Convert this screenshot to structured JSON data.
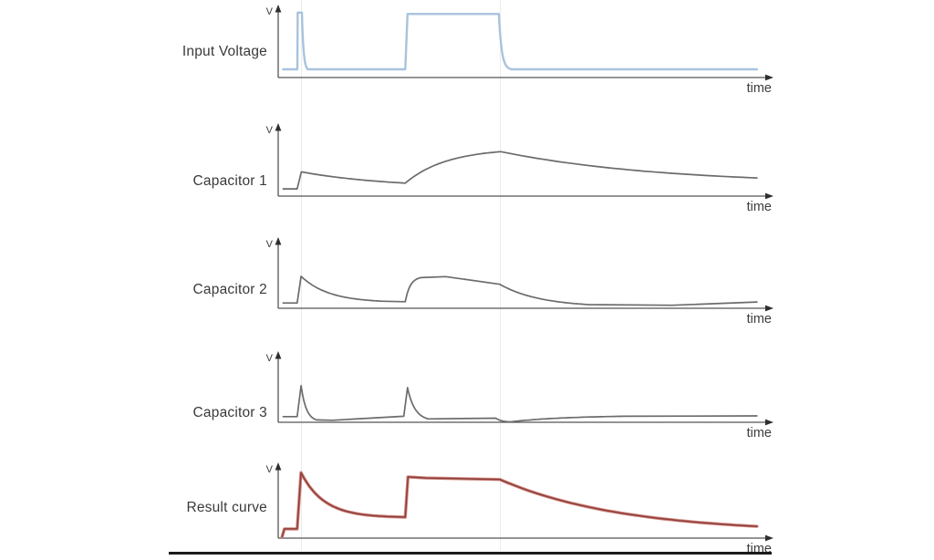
{
  "figure": {
    "kind": "stacked-time-response-plots",
    "colors": {
      "input_curve": "#a8c3dd",
      "capacitor_curve": "#6b6b6b",
      "result_outer": "#cf837c",
      "result_core": "#8e3f3a",
      "axis": "#545454",
      "guide": "#ebebeb"
    }
  },
  "chart_data": {
    "type": "line",
    "x_axis": "time",
    "y_axis": "V",
    "axes_numeric": false,
    "grid": false,
    "event_marker_times_x": [
      0.0463,
      0.451
    ],
    "note": "x,y normalized: x 0..1 along time axis, y 0=time-axis 1=top of V axis. segments: [x0,y0,x1,y1,type,(k)]",
    "charts": [
      {
        "label": "Input Voltage",
        "y_axis_label": "V",
        "x_axis_label": "time",
        "color": "#a8c3dd",
        "core_color": null,
        "segments": [
          [
            0.01,
            0.12,
            0.0389,
            0.12,
            "line"
          ],
          [
            0.0389,
            0.12,
            0.0396,
            0.95,
            "line"
          ],
          [
            0.0396,
            0.95,
            0.0481,
            0.95,
            "line"
          ],
          [
            0.0481,
            0.95,
            0.06,
            0.12,
            "exp",
            3.5
          ],
          [
            0.06,
            0.12,
            0.258,
            0.12,
            "line"
          ],
          [
            0.258,
            0.12,
            0.2625,
            0.93,
            "line"
          ],
          [
            0.2625,
            0.93,
            0.448,
            0.93,
            "line"
          ],
          [
            0.448,
            0.93,
            0.474,
            0.12,
            "exp",
            4.5
          ],
          [
            0.474,
            0.12,
            0.972,
            0.12,
            "line"
          ]
        ]
      },
      {
        "label": "Capacitor 1",
        "y_axis_label": "V",
        "x_axis_label": "time",
        "color": "#6b6b6b",
        "core_color": null,
        "segments": [
          [
            0.01,
            0.105,
            0.0385,
            0.105,
            "line"
          ],
          [
            0.0385,
            0.105,
            0.047,
            0.355,
            "line"
          ],
          [
            0.047,
            0.355,
            0.258,
            0.19,
            "exp",
            1.2
          ],
          [
            0.258,
            0.19,
            0.452,
            0.65,
            "exp",
            2.3
          ],
          [
            0.452,
            0.65,
            0.972,
            0.265,
            "exp",
            1.6
          ]
        ]
      },
      {
        "label": "Capacitor 2",
        "y_axis_label": "V",
        "x_axis_label": "time",
        "color": "#6b6b6b",
        "core_color": null,
        "segments": [
          [
            0.01,
            0.08,
            0.0385,
            0.08,
            "line"
          ],
          [
            0.0385,
            0.08,
            0.0465,
            0.48,
            "line"
          ],
          [
            0.0465,
            0.48,
            0.215,
            0.105,
            "exp",
            3.0
          ],
          [
            0.215,
            0.105,
            0.258,
            0.098,
            "line"
          ],
          [
            0.258,
            0.098,
            0.29,
            0.46,
            "exp",
            3.2
          ],
          [
            0.29,
            0.46,
            0.34,
            0.475,
            "line"
          ],
          [
            0.34,
            0.475,
            0.45,
            0.36,
            "line"
          ],
          [
            0.45,
            0.36,
            0.63,
            0.055,
            "exp",
            2.2
          ],
          [
            0.63,
            0.055,
            0.8,
            0.045,
            "line"
          ],
          [
            0.8,
            0.045,
            0.972,
            0.095,
            "line"
          ]
        ]
      },
      {
        "label": "Capacitor 3",
        "y_axis_label": "V",
        "x_axis_label": "time",
        "color": "#6b6b6b",
        "core_color": null,
        "segments": [
          [
            0.01,
            0.085,
            0.0385,
            0.085,
            "line"
          ],
          [
            0.0385,
            0.085,
            0.0465,
            0.55,
            "line"
          ],
          [
            0.0465,
            0.55,
            0.078,
            0.035,
            "exp",
            3.0
          ],
          [
            0.078,
            0.035,
            0.11,
            0.03,
            "line"
          ],
          [
            0.11,
            0.03,
            0.255,
            0.09,
            "line"
          ],
          [
            0.255,
            0.09,
            0.2625,
            0.52,
            "line"
          ],
          [
            0.2625,
            0.52,
            0.305,
            0.05,
            "exp",
            2.8
          ],
          [
            0.305,
            0.05,
            0.442,
            0.062,
            "line"
          ],
          [
            0.442,
            0.062,
            0.47,
            0.006,
            "exp",
            2.5
          ],
          [
            0.47,
            0.006,
            0.7,
            0.09,
            "exp",
            2.0
          ],
          [
            0.7,
            0.09,
            0.972,
            0.096,
            "line"
          ]
        ]
      },
      {
        "label": "Result curve",
        "y_axis_label": "V",
        "x_axis_label": "time",
        "color": "#cf837c",
        "core_color": "#8e3f3a",
        "segments": [
          [
            0.008,
            0.02,
            0.0125,
            0.13,
            "line"
          ],
          [
            0.0125,
            0.13,
            0.0385,
            0.13,
            "line"
          ],
          [
            0.0385,
            0.13,
            0.0463,
            0.92,
            "line"
          ],
          [
            0.0463,
            0.92,
            0.258,
            0.295,
            "exp",
            4.5
          ],
          [
            0.258,
            0.295,
            0.2635,
            0.86,
            "line"
          ],
          [
            0.2635,
            0.86,
            0.3,
            0.845,
            "line"
          ],
          [
            0.3,
            0.845,
            0.45,
            0.825,
            "line"
          ],
          [
            0.45,
            0.825,
            0.972,
            0.165,
            "exp",
            2.1
          ]
        ]
      }
    ]
  }
}
